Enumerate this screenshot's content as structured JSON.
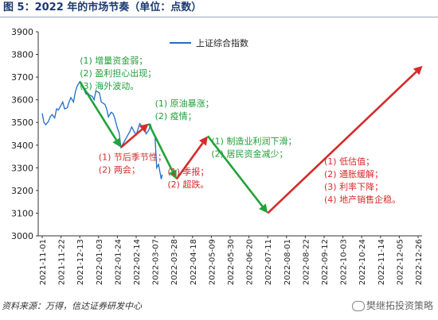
{
  "title": "图 5：2022 年的市场节奏（单位：点数）",
  "source": "资料来源：万得，信达证券研发中心",
  "watermark": "樊继拓投资策略",
  "colors": {
    "series": "#1f6fc7",
    "up_arrow": "#d52b2b",
    "down_arrow": "#22a33a",
    "axis": "#333333"
  },
  "chart_data": {
    "type": "line",
    "title": "",
    "xlabel": "",
    "ylabel": "",
    "ylim": [
      3000,
      3900
    ],
    "yticks": [
      3000,
      3100,
      3200,
      3300,
      3400,
      3500,
      3600,
      3700,
      3800,
      3900
    ],
    "x_tick_labels": [
      "2021-11-01",
      "2021-11-22",
      "2021-12-13",
      "2022-01-03",
      "2022-01-24",
      "2022-02-14",
      "2022-03-07",
      "2022-03-28",
      "2022-04-18",
      "2022-05-09",
      "2022-05-30",
      "2022-06-20",
      "2022-07-11",
      "2022-08-01",
      "2022-08-22",
      "2022-09-12",
      "2022-10-03",
      "2022-10-24",
      "2022-11-14",
      "2022-12-05",
      "2022-12-26"
    ],
    "legend": "上证综合指数",
    "legend_position": "top-center",
    "series": [
      {
        "name": "上证综合指数",
        "x": [
          "2021-11-01",
          "2021-11-03",
          "2021-11-05",
          "2021-11-08",
          "2021-11-10",
          "2021-11-12",
          "2021-11-15",
          "2021-11-17",
          "2021-11-19",
          "2021-11-22",
          "2021-11-24",
          "2021-11-26",
          "2021-11-29",
          "2021-12-01",
          "2021-12-03",
          "2021-12-06",
          "2021-12-08",
          "2021-12-10",
          "2021-12-13",
          "2021-12-15",
          "2021-12-17",
          "2021-12-20",
          "2021-12-22",
          "2021-12-24",
          "2021-12-27",
          "2021-12-29",
          "2021-12-31",
          "2022-01-04",
          "2022-01-06",
          "2022-01-10",
          "2022-01-12",
          "2022-01-14",
          "2022-01-17",
          "2022-01-19",
          "2022-01-21",
          "2022-01-24",
          "2022-01-26",
          "2022-01-28",
          "2022-02-07",
          "2022-02-09",
          "2022-02-11",
          "2022-02-14",
          "2022-02-16",
          "2022-02-18",
          "2022-02-21",
          "2022-02-23",
          "2022-02-25",
          "2022-02-28",
          "2022-03-02",
          "2022-03-04",
          "2022-03-07",
          "2022-03-09",
          "2022-03-11",
          "2022-03-14",
          "2022-03-15"
        ],
        "values": [
          3540,
          3500,
          3490,
          3505,
          3525,
          3535,
          3520,
          3560,
          3555,
          3575,
          3590,
          3560,
          3565,
          3590,
          3610,
          3590,
          3635,
          3660,
          3680,
          3665,
          3650,
          3625,
          3630,
          3620,
          3615,
          3600,
          3640,
          3630,
          3590,
          3580,
          3560,
          3525,
          3545,
          3540,
          3520,
          3475,
          3455,
          3390,
          3460,
          3480,
          3465,
          3445,
          3470,
          3495,
          3480,
          3485,
          3450,
          3465,
          3490,
          3465,
          3440,
          3300,
          3315,
          3250,
          3270
        ]
      }
    ],
    "arrows": [
      {
        "direction": "down",
        "from": {
          "x": "2021-12-13",
          "y": 3680
        },
        "to": {
          "x": "2022-01-28",
          "y": 3390
        }
      },
      {
        "direction": "up",
        "from": {
          "x": "2022-01-28",
          "y": 3390
        },
        "to": {
          "x": "2022-02-28",
          "y": 3495
        }
      },
      {
        "direction": "down",
        "from": {
          "x": "2022-02-28",
          "y": 3495
        },
        "to": {
          "x": "2022-03-31",
          "y": 3250
        }
      },
      {
        "direction": "up",
        "from": {
          "x": "2022-03-31",
          "y": 3250
        },
        "to": {
          "x": "2022-05-05",
          "y": 3440
        }
      },
      {
        "direction": "down",
        "from": {
          "x": "2022-05-05",
          "y": 3440
        },
        "to": {
          "x": "2022-07-11",
          "y": 3100
        }
      },
      {
        "direction": "up",
        "from": {
          "x": "2022-07-11",
          "y": 3100
        },
        "to": {
          "x": "2022-12-31",
          "y": 3750
        }
      }
    ],
    "annotations": [
      {
        "color": "green",
        "anchor": {
          "x": "2021-12-13",
          "y": 3760
        },
        "lines": [
          "(1) 增量资金弱；",
          "(2) 盈利担心出现；",
          "(3) 海外波动。"
        ]
      },
      {
        "color": "green",
        "anchor": {
          "x": "2022-03-07",
          "y": 3570
        },
        "lines": [
          "(1) 原油暴涨；",
          "(2) 疫情；"
        ]
      },
      {
        "color": "green",
        "anchor": {
          "x": "2022-05-09",
          "y": 3405
        },
        "lines": [
          "(1) 制造业利润下滑；",
          "(2) 居民资金减少；"
        ]
      },
      {
        "color": "red",
        "anchor": {
          "x": "2022-01-03",
          "y": 3335
        },
        "lines": [
          "(1) 节后季节性；",
          "(2) 两会；"
        ]
      },
      {
        "color": "red",
        "anchor": {
          "x": "2022-03-21",
          "y": 3270
        },
        "lines": [
          "(1) 季报；",
          "(2) 超跌。"
        ]
      },
      {
        "color": "red",
        "anchor": {
          "x": "2022-09-12",
          "y": 3315
        },
        "lines": [
          "(1)  低估值；",
          "(2) 通胀缓解；",
          "(3)  利率下降；",
          "(4)  地产销售企稳。"
        ]
      }
    ]
  }
}
